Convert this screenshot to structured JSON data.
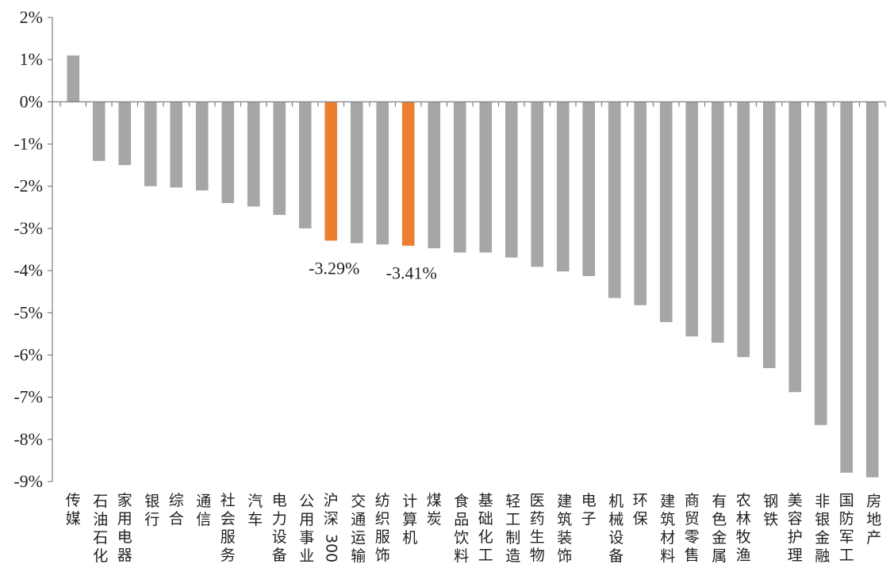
{
  "chart_data": {
    "type": "bar",
    "title": "",
    "xlabel": "",
    "ylabel": "",
    "ylim": [
      -9,
      2
    ],
    "y_tick_values": [
      2,
      1,
      0,
      -1,
      -2,
      -3,
      -4,
      -5,
      -6,
      -7,
      -8,
      -9
    ],
    "y_tick_labels": [
      "2%",
      "1%",
      "0%",
      "-1%",
      "-2%",
      "-3%",
      "-4%",
      "-5%",
      "-6%",
      "-7%",
      "-8%",
      "-9%"
    ],
    "grid": false,
    "legend": "none",
    "categories": [
      "传媒",
      "石油石化",
      "家用电器",
      "银行",
      "综合",
      "通信",
      "社会服务",
      "汽车",
      "电力设备",
      "公用事业",
      "沪深300",
      "交通运输",
      "纺织服饰",
      "计算机",
      "煤炭",
      "食品饮料",
      "基础化工",
      "轻工制造",
      "医药生物",
      "建筑装饰",
      "电子",
      "机械设备",
      "环保",
      "建筑材料",
      "商贸零售",
      "有色金属",
      "农林牧渔",
      "钢铁",
      "美容护理",
      "非银金融",
      "国防军工",
      "房地产"
    ],
    "values": [
      1.1,
      -1.4,
      -1.5,
      -2.0,
      -2.03,
      -2.1,
      -2.4,
      -2.48,
      -2.68,
      -3.0,
      -3.29,
      -3.35,
      -3.38,
      -3.41,
      -3.47,
      -3.57,
      -3.57,
      -3.69,
      -3.91,
      -4.02,
      -4.13,
      -4.65,
      -4.82,
      -5.22,
      -5.56,
      -5.71,
      -6.05,
      -6.31,
      -6.88,
      -7.66,
      -8.79,
      -8.9
    ],
    "highlight": [
      "沪深300",
      "计算机"
    ],
    "data_labels": [
      {
        "category": "沪深300",
        "text": "-3.29%"
      },
      {
        "category": "计算机",
        "text": "-3.41%"
      }
    ],
    "colors": {
      "bar": "#a6a6a6",
      "highlight": "#ed7d31",
      "axis": "#808080"
    }
  }
}
